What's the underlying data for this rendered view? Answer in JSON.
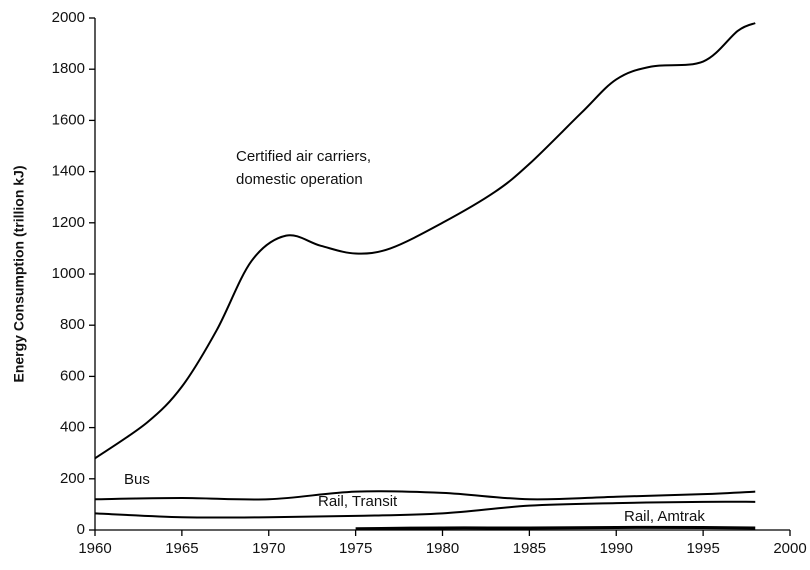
{
  "chart_data": {
    "type": "line",
    "y_label": "Energy Consumption (trillion kJ)",
    "annotations": [
      "Certified air carriers,",
      "domestic operation",
      "Bus",
      "Rail, Transit",
      "Rail, Amtrak"
    ],
    "xlim": [
      1960,
      2000
    ],
    "xticks": [
      1960,
      1965,
      1970,
      1975,
      1980,
      1985,
      1990,
      1995,
      2000
    ],
    "ylim": [
      0,
      2000
    ],
    "yticks": [
      0,
      200,
      400,
      600,
      800,
      1000,
      1200,
      1400,
      1600,
      1800,
      2000
    ],
    "grid": false,
    "series": [
      {
        "color": "#000000",
        "x": [
          1960,
          1963,
          1965,
          1967,
          1969,
          1971,
          1973,
          1975,
          1977,
          1980,
          1983,
          1985,
          1988,
          1990,
          1992,
          1995,
          1997,
          1998
        ],
        "values": [
          280,
          420,
          560,
          780,
          1050,
          1150,
          1110,
          1080,
          1100,
          1200,
          1320,
          1430,
          1630,
          1760,
          1810,
          1830,
          1950,
          1980
        ]
      },
      {
        "color": "#000000",
        "x": [
          1960,
          1965,
          1970,
          1975,
          1980,
          1985,
          1990,
          1995,
          1998
        ],
        "values": [
          120,
          125,
          120,
          150,
          145,
          120,
          130,
          140,
          150
        ]
      },
      {
        "color": "#000000",
        "x": [
          1960,
          1965,
          1970,
          1975,
          1980,
          1985,
          1990,
          1995,
          1998
        ],
        "values": [
          65,
          50,
          50,
          55,
          65,
          95,
          105,
          110,
          110
        ]
      },
      {
        "color": "#000000",
        "x": [
          1975,
          1980,
          1985,
          1990,
          1995,
          1998
        ],
        "values": [
          5,
          8,
          8,
          10,
          10,
          8
        ]
      }
    ]
  }
}
